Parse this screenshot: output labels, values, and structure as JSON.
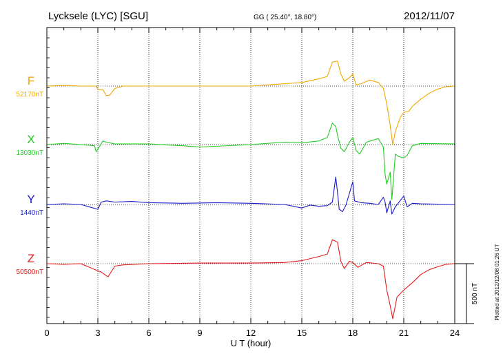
{
  "header": {
    "station": "Lycksele (LYC)  [SGU]",
    "coords": "GG ( 25.40°,  18.80°)",
    "date": "2012/11/07"
  },
  "footer": {
    "plotted": "Plotted at 2012/12/08 01:26 UT"
  },
  "chart_data": {
    "type": "line",
    "xlabel": "U T (hour)",
    "xlim": [
      0,
      24
    ],
    "xticks": [
      0,
      3,
      6,
      9,
      12,
      15,
      18,
      21,
      24
    ],
    "scale_label": "500 nT",
    "scale_nT": 500,
    "grid": true,
    "series": [
      {
        "name": "F",
        "baseline_label": "52170nT",
        "color": "#f0a800",
        "points": [
          [
            0,
            0
          ],
          [
            1,
            5
          ],
          [
            2,
            0
          ],
          [
            2.9,
            0
          ],
          [
            3.0,
            -28
          ],
          [
            3.3,
            -30
          ],
          [
            3.5,
            -80
          ],
          [
            3.7,
            -75
          ],
          [
            4.0,
            -20
          ],
          [
            4.5,
            0
          ],
          [
            6,
            0
          ],
          [
            9,
            0
          ],
          [
            12,
            0
          ],
          [
            13,
            10
          ],
          [
            15,
            30
          ],
          [
            16,
            60
          ],
          [
            16.5,
            80
          ],
          [
            16.8,
            200
          ],
          [
            17.1,
            210
          ],
          [
            17.3,
            100
          ],
          [
            17.5,
            40
          ],
          [
            17.8,
            70
          ],
          [
            18.0,
            100
          ],
          [
            18.2,
            10
          ],
          [
            18.5,
            20
          ],
          [
            19.0,
            50
          ],
          [
            19.5,
            30
          ],
          [
            19.8,
            -20
          ],
          [
            20.0,
            -150
          ],
          [
            20.2,
            -330
          ],
          [
            20.35,
            -490
          ],
          [
            20.5,
            -380
          ],
          [
            20.8,
            -260
          ],
          [
            21.0,
            -220
          ],
          [
            21.3,
            -210
          ],
          [
            21.5,
            -170
          ],
          [
            22.0,
            -110
          ],
          [
            22.5,
            -60
          ],
          [
            23.0,
            -25
          ],
          [
            23.5,
            -5
          ],
          [
            24,
            0
          ]
        ]
      },
      {
        "name": "X",
        "baseline_label": "13030nT",
        "color": "#22cc22",
        "points": [
          [
            0,
            0
          ],
          [
            1,
            10
          ],
          [
            2,
            0
          ],
          [
            2.8,
            -10
          ],
          [
            2.9,
            -60
          ],
          [
            3.1,
            -15
          ],
          [
            3.3,
            30
          ],
          [
            3.5,
            20
          ],
          [
            4,
            5
          ],
          [
            6,
            5
          ],
          [
            8,
            -10
          ],
          [
            9,
            -20
          ],
          [
            12,
            0
          ],
          [
            14,
            20
          ],
          [
            15,
            15
          ],
          [
            16,
            30
          ],
          [
            16.5,
            60
          ],
          [
            16.8,
            180
          ],
          [
            17.0,
            150
          ],
          [
            17.1,
            80
          ],
          [
            17.3,
            -30
          ],
          [
            17.5,
            -60
          ],
          [
            17.8,
            20
          ],
          [
            18.0,
            60
          ],
          [
            18.2,
            -50
          ],
          [
            18.4,
            -80
          ],
          [
            18.8,
            20
          ],
          [
            19.5,
            50
          ],
          [
            19.8,
            -20
          ],
          [
            19.9,
            -250
          ],
          [
            20.0,
            -330
          ],
          [
            20.2,
            -230
          ],
          [
            20.3,
            -460
          ],
          [
            20.5,
            -80
          ],
          [
            20.7,
            -100
          ],
          [
            21.0,
            -110
          ],
          [
            21.2,
            -90
          ],
          [
            21.5,
            -10
          ],
          [
            22,
            10
          ],
          [
            24,
            5
          ]
        ]
      },
      {
        "name": "Y",
        "baseline_label": "1440nT",
        "color": "#1a1acc",
        "points": [
          [
            0,
            0
          ],
          [
            1,
            5
          ],
          [
            2,
            0
          ],
          [
            3.0,
            -40
          ],
          [
            3.2,
            20
          ],
          [
            3.5,
            30
          ],
          [
            4,
            20
          ],
          [
            5,
            25
          ],
          [
            6,
            15
          ],
          [
            8,
            10
          ],
          [
            10,
            15
          ],
          [
            12,
            10
          ],
          [
            14,
            0
          ],
          [
            15,
            -30
          ],
          [
            15.5,
            -5
          ],
          [
            16,
            -15
          ],
          [
            16.5,
            -10
          ],
          [
            16.8,
            20
          ],
          [
            17.0,
            230
          ],
          [
            17.1,
            100
          ],
          [
            17.2,
            -40
          ],
          [
            17.4,
            -60
          ],
          [
            17.6,
            -5
          ],
          [
            18.0,
            190
          ],
          [
            18.1,
            30
          ],
          [
            18.5,
            15
          ],
          [
            19,
            10
          ],
          [
            19.5,
            0
          ],
          [
            19.8,
            60
          ],
          [
            19.9,
            20
          ],
          [
            20.0,
            -70
          ],
          [
            20.2,
            30
          ],
          [
            20.3,
            -80
          ],
          [
            20.5,
            -20
          ],
          [
            21,
            70
          ],
          [
            21.2,
            -20
          ],
          [
            21.5,
            10
          ],
          [
            22,
            5
          ],
          [
            24,
            0
          ]
        ]
      },
      {
        "name": "Z",
        "baseline_label": "50500nT",
        "color": "#e61a1a",
        "points": [
          [
            0,
            0
          ],
          [
            1,
            -5
          ],
          [
            2,
            0
          ],
          [
            3.0,
            -60
          ],
          [
            3.2,
            -70
          ],
          [
            3.6,
            -110
          ],
          [
            4.0,
            -20
          ],
          [
            4.5,
            -10
          ],
          [
            6,
            0
          ],
          [
            9,
            5
          ],
          [
            12,
            5
          ],
          [
            14,
            10
          ],
          [
            15,
            25
          ],
          [
            16,
            60
          ],
          [
            16.5,
            80
          ],
          [
            16.8,
            200
          ],
          [
            17.1,
            180
          ],
          [
            17.3,
            20
          ],
          [
            17.5,
            -40
          ],
          [
            17.8,
            20
          ],
          [
            18.0,
            10
          ],
          [
            18.3,
            -30
          ],
          [
            18.8,
            10
          ],
          [
            19.5,
            0
          ],
          [
            19.8,
            -20
          ],
          [
            20.0,
            -220
          ],
          [
            20.2,
            -350
          ],
          [
            20.35,
            -460
          ],
          [
            20.6,
            -280
          ],
          [
            21.0,
            -220
          ],
          [
            21.5,
            -160
          ],
          [
            22.0,
            -90
          ],
          [
            22.5,
            -50
          ],
          [
            23.0,
            -25
          ],
          [
            23.5,
            -5
          ],
          [
            24,
            0
          ]
        ]
      }
    ]
  }
}
